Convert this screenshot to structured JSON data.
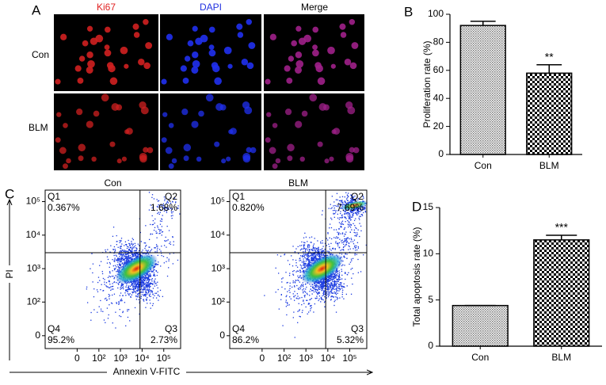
{
  "panel_labels": [
    "A",
    "B",
    "C",
    "D"
  ],
  "panel_a": {
    "columns": [
      "Ki67",
      "DAPI",
      "Merge"
    ],
    "rows": [
      "Con",
      "BLM"
    ]
  },
  "chart_data": [
    {
      "type": "bar",
      "ylabel": "Proliferation rate (%)",
      "categories": [
        "Con",
        "BLM"
      ],
      "values": [
        92,
        58
      ],
      "errors": [
        3,
        6
      ],
      "annotations": [
        null,
        "**"
      ],
      "patterns": [
        "fine",
        "check"
      ],
      "color": "#000000",
      "ylim": [
        0,
        100
      ],
      "yticks": [
        0,
        20,
        40,
        60,
        80,
        100
      ]
    },
    {
      "type": "bar",
      "ylabel": "Total apoptosis rate (%)",
      "categories": [
        "Con",
        "BLM"
      ],
      "values": [
        4.4,
        11.5
      ],
      "errors": [
        0,
        0.5
      ],
      "annotations": [
        null,
        "***"
      ],
      "patterns": [
        "fine",
        "check"
      ],
      "color": "#000000",
      "ylim": [
        0,
        15
      ],
      "yticks": [
        0,
        5,
        10,
        15
      ]
    },
    {
      "type": "flow",
      "title": "Con",
      "xlabel": "Annexin V-FITC",
      "ylabel": "PI",
      "scale": "biexponential",
      "xlim": [
        -300,
        600000
      ],
      "ylim": [
        -20,
        220000
      ],
      "gates": [
        8000,
        3000
      ],
      "xticks": [
        {
          "value": 0,
          "label": "0"
        },
        {
          "value": 100,
          "label": "10²"
        },
        {
          "value": 1000,
          "label": "10³"
        },
        {
          "value": 10000,
          "label": "10⁴"
        },
        {
          "value": 100000,
          "label": "10⁵"
        }
      ],
      "yticks": [
        {
          "value": 0,
          "label": "0"
        },
        {
          "value": 100,
          "label": "10²"
        },
        {
          "value": 1000,
          "label": "10³"
        },
        {
          "value": 10000,
          "label": "10⁴"
        },
        {
          "value": 100000,
          "label": "10⁵"
        }
      ],
      "quadrants": [
        {
          "name": "Q1",
          "value": 0.367,
          "label": "0.367%"
        },
        {
          "name": "Q2",
          "value": 1.68,
          "label": "1.68%"
        },
        {
          "name": "Q3",
          "value": 2.73,
          "label": "2.73%"
        },
        {
          "name": "Q4",
          "value": 95.2,
          "label": "95.2%"
        }
      ]
    },
    {
      "type": "flow",
      "title": "BLM",
      "scale": "biexponential",
      "xlim": [
        -300,
        600000
      ],
      "ylim": [
        -20,
        220000
      ],
      "gates": [
        8000,
        3000
      ],
      "xticks": [
        {
          "value": 0,
          "label": "0"
        },
        {
          "value": 100,
          "label": "10²"
        },
        {
          "value": 1000,
          "label": "10³"
        },
        {
          "value": 10000,
          "label": "10⁴"
        },
        {
          "value": 100000,
          "label": "10⁵"
        }
      ],
      "yticks": [
        {
          "value": 0,
          "label": "0"
        },
        {
          "value": 100,
          "label": "10²"
        },
        {
          "value": 1000,
          "label": "10³"
        },
        {
          "value": 10000,
          "label": "10⁴"
        },
        {
          "value": 100000,
          "label": "10⁵"
        }
      ],
      "quadrants": [
        {
          "name": "Q1",
          "value": 0.82,
          "label": "0.820%"
        },
        {
          "name": "Q2",
          "value": 7.69,
          "label": "7.69%"
        },
        {
          "name": "Q3",
          "value": 5.32,
          "label": "5.32%"
        },
        {
          "name": "Q4",
          "value": 86.2,
          "label": "86.2%"
        }
      ]
    }
  ]
}
